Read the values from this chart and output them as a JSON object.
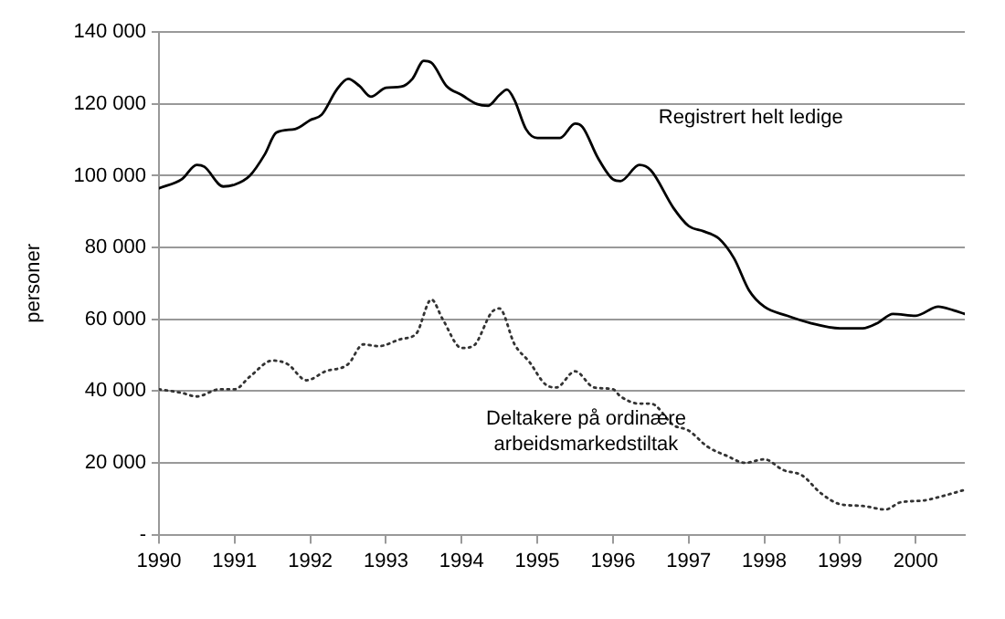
{
  "chart_data": {
    "type": "line",
    "ylabel": "personer",
    "xlim": [
      1990,
      2000.65
    ],
    "xticks": [
      1990,
      1991,
      1992,
      1993,
      1994,
      1995,
      1996,
      1997,
      1998,
      1999,
      2000
    ],
    "ylim": [
      0,
      140000
    ],
    "yticks": [
      {
        "value": 0,
        "label": "-"
      },
      {
        "value": 20000,
        "label": "20 000"
      },
      {
        "value": 40000,
        "label": "40 000"
      },
      {
        "value": 60000,
        "label": "60 000"
      },
      {
        "value": 80000,
        "label": "80 000"
      },
      {
        "value": 100000,
        "label": "100 000"
      },
      {
        "value": 120000,
        "label": "120 000"
      },
      {
        "value": 140000,
        "label": "140 000"
      }
    ],
    "grid": "y",
    "marker": "none",
    "series": [
      {
        "name": "Registrert helt ledige",
        "color": "#000000",
        "line_style": "solid",
        "x": [
          1990,
          1990.3,
          1990.5,
          1990.6,
          1990.85,
          1991,
          1991.2,
          1991.4,
          1991.55,
          1991.8,
          1992,
          1992.15,
          1992.35,
          1992.5,
          1992.65,
          1992.8,
          1993,
          1993.2,
          1993.35,
          1993.5,
          1993.6,
          1993.8,
          1994,
          1994.2,
          1994.35,
          1994.5,
          1994.6,
          1994.7,
          1994.85,
          1995,
          1995.3,
          1995.5,
          1995.6,
          1995.8,
          1996,
          1996.1,
          1996.35,
          1996.5,
          1996.8,
          1997,
          1997.2,
          1997.4,
          1997.6,
          1997.8,
          1998,
          1998.3,
          1998.6,
          1999,
          1999.3,
          1999.5,
          1999.7,
          2000,
          2000.3,
          2000.5,
          2000.65
        ],
        "values": [
          96500,
          99000,
          103000,
          102500,
          97000,
          97500,
          100000,
          106000,
          112000,
          113000,
          115500,
          117000,
          124000,
          127000,
          125000,
          122000,
          124500,
          124800,
          127000,
          132000,
          131500,
          125000,
          122500,
          120000,
          119500,
          122500,
          124000,
          121000,
          113000,
          110500,
          110500,
          114500,
          113500,
          105000,
          99000,
          98500,
          103000,
          101500,
          91000,
          86000,
          84500,
          82500,
          77000,
          68000,
          63500,
          61000,
          59000,
          57500,
          57500,
          59000,
          61500,
          61000,
          63500,
          62500,
          61500
        ]
      },
      {
        "name": "Deltakere på ordinære\narbeidsmarkedstiltak",
        "color": "#333333",
        "line_style": "dotted",
        "x": [
          1990,
          1990.3,
          1990.5,
          1990.8,
          1991,
          1991.2,
          1991.5,
          1991.7,
          1991.95,
          1992.2,
          1992.5,
          1992.7,
          1992.9,
          1993.2,
          1993.4,
          1993.6,
          1993.75,
          1994,
          1994.15,
          1994.4,
          1994.5,
          1994.7,
          1994.9,
          1995.1,
          1995.25,
          1995.5,
          1995.75,
          1996,
          1996.1,
          1996.35,
          1996.5,
          1996.8,
          1997,
          1997.25,
          1997.5,
          1997.75,
          1998,
          1998.25,
          1998.5,
          1998.75,
          1999,
          1999.3,
          1999.6,
          1999.8,
          2000.1,
          2000.4,
          2000.65
        ],
        "values": [
          40500,
          39500,
          38500,
          40500,
          40500,
          44000,
          48500,
          47500,
          43000,
          45500,
          47500,
          53000,
          52500,
          54500,
          56000,
          65500,
          60000,
          52000,
          52500,
          62000,
          63000,
          53000,
          48000,
          42000,
          41000,
          45500,
          41000,
          40500,
          38500,
          36500,
          36500,
          30500,
          29000,
          24500,
          22000,
          20000,
          21000,
          18000,
          16500,
          11500,
          8500,
          8000,
          7000,
          9000,
          9500,
          11000,
          12500
        ]
      }
    ]
  }
}
